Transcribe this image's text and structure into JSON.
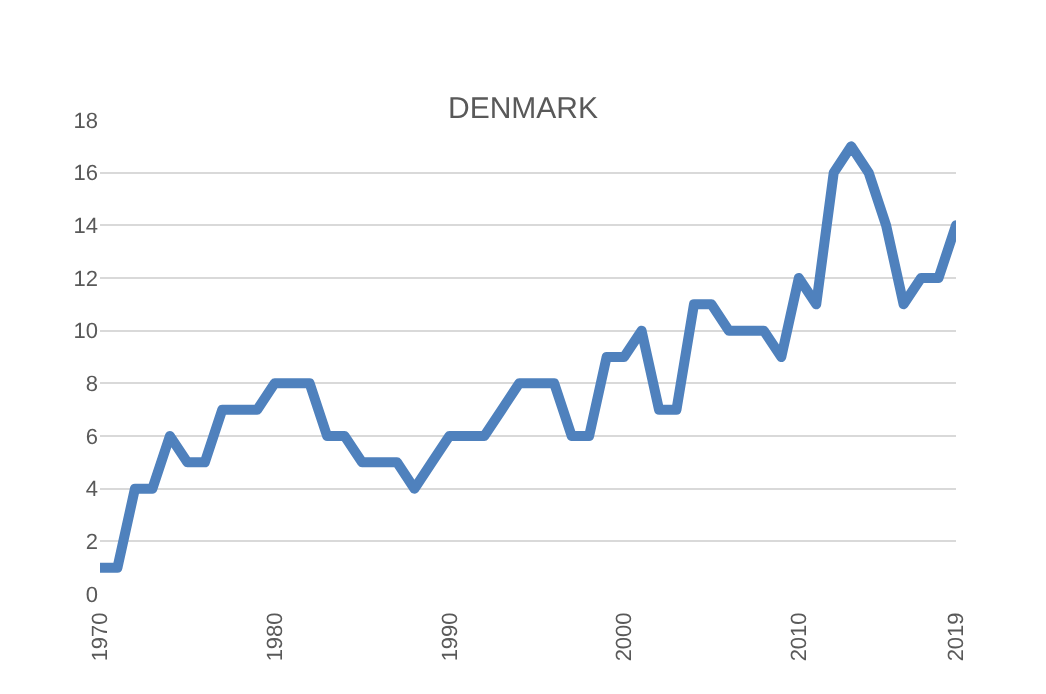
{
  "chart_data": {
    "type": "line",
    "title": "DENMARK",
    "x": [
      1970,
      1971,
      1972,
      1973,
      1974,
      1975,
      1976,
      1977,
      1978,
      1979,
      1980,
      1981,
      1982,
      1983,
      1984,
      1985,
      1986,
      1987,
      1988,
      1989,
      1990,
      1991,
      1992,
      1993,
      1994,
      1995,
      1996,
      1997,
      1998,
      1999,
      2000,
      2001,
      2002,
      2003,
      2004,
      2005,
      2006,
      2007,
      2008,
      2009,
      2010,
      2011,
      2012,
      2013,
      2014,
      2015,
      2016,
      2017,
      2018,
      2019
    ],
    "series": [
      {
        "color": "#4f81bd",
        "values": [
          1,
          1,
          4,
          4,
          6,
          5,
          5,
          7,
          7,
          7,
          8,
          8,
          8,
          6,
          6,
          5,
          5,
          5,
          4,
          5,
          6,
          6,
          6,
          7,
          8,
          8,
          8,
          6,
          6,
          9,
          9,
          10,
          7,
          7,
          11,
          11,
          10,
          10,
          10,
          9,
          12,
          11,
          16,
          17,
          16,
          14,
          11,
          12,
          12,
          14
        ]
      }
    ],
    "xlim": [
      1970,
      2019
    ],
    "xticks": [
      1970,
      1980,
      1990,
      2000,
      2010,
      2019
    ],
    "ylim": [
      0,
      18
    ],
    "yticks": [
      0,
      2,
      4,
      6,
      8,
      10,
      12,
      14,
      16,
      18
    ],
    "grid": "y",
    "marker": "none",
    "line_style": "solid"
  }
}
